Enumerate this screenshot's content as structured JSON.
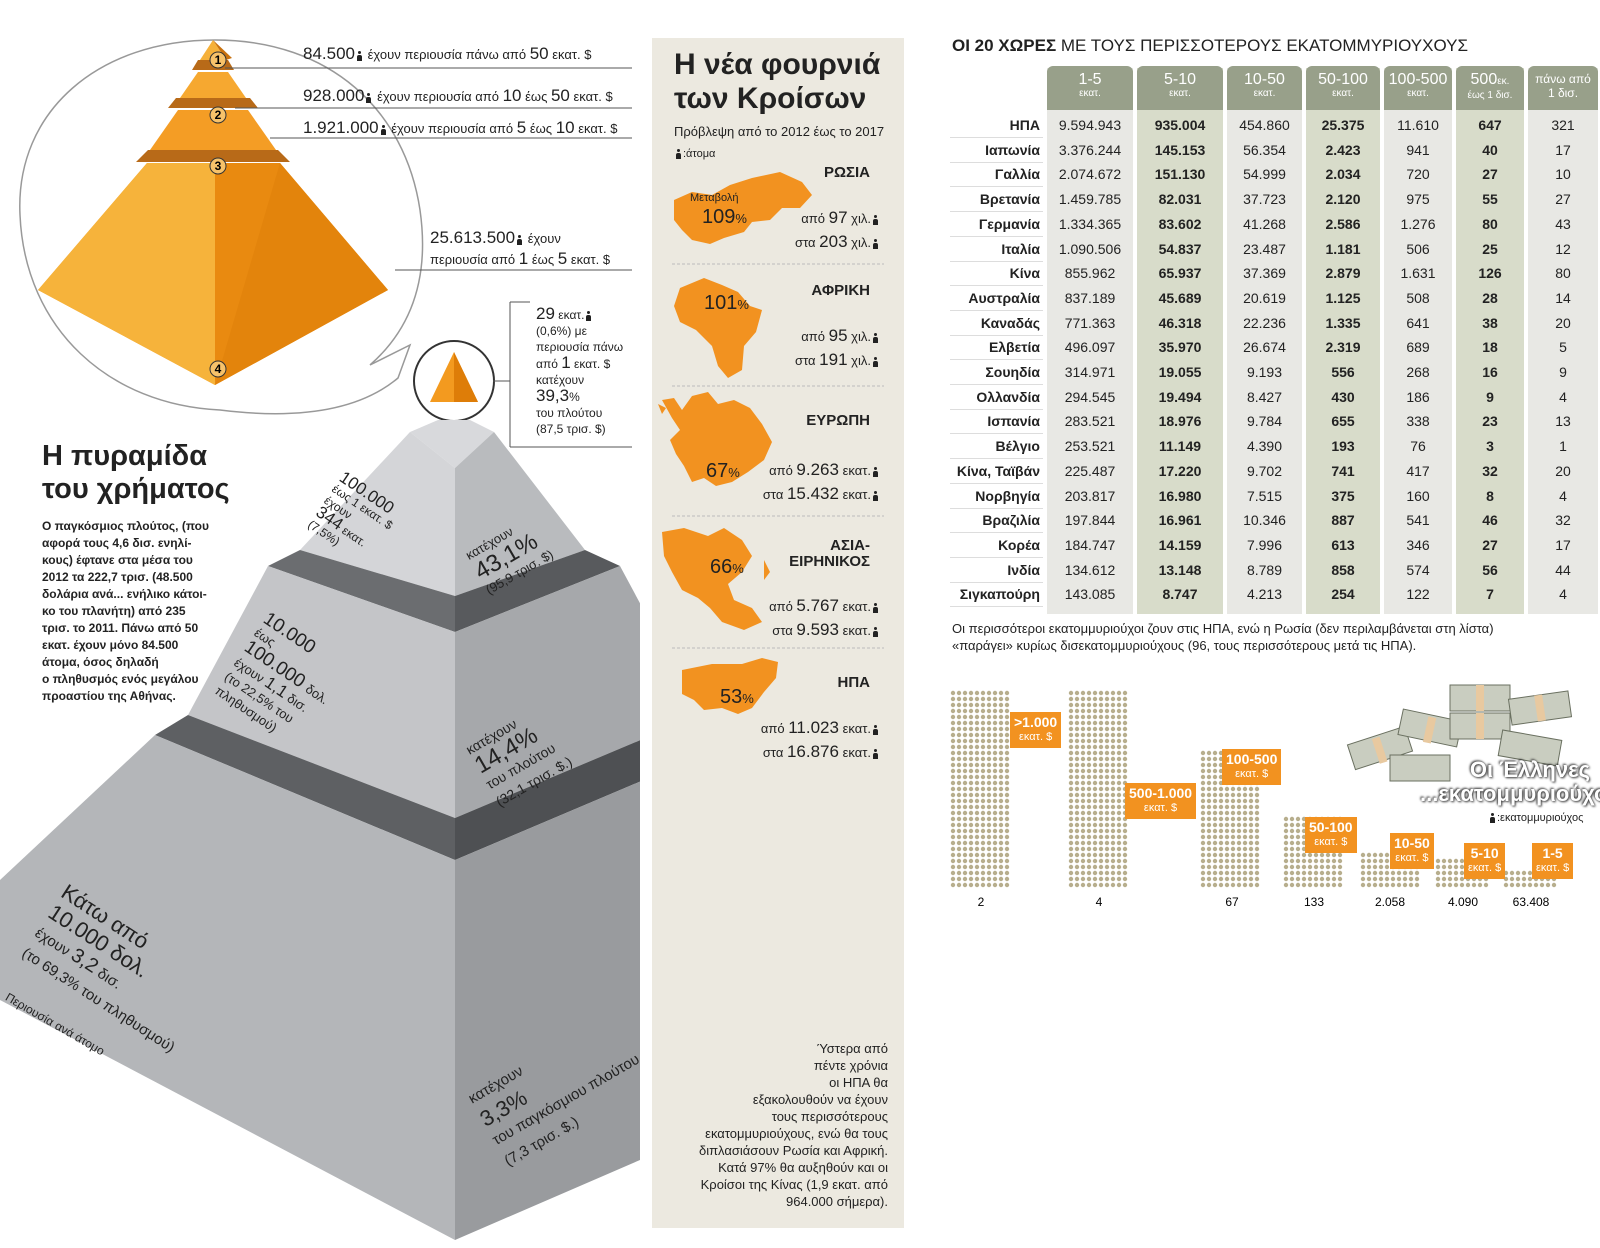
{
  "colors": {
    "orange": "#f29220",
    "gray_dark": "#8a8c90",
    "gray_light": "#c8c9cc",
    "panel": "#ece9e0",
    "header_green": "#98a08a"
  },
  "pyramid_top": {
    "tiers": [
      {
        "num": "1",
        "value": "84.500",
        "text": "έχουν περιουσία πάνω από",
        "n1": "50",
        "unit": "εκατ. $"
      },
      {
        "num": "2",
        "value": "928.000",
        "text": "έχουν περιουσία από",
        "n1": "10",
        "mid": "έως",
        "n2": "50",
        "unit": "εκατ. $"
      },
      {
        "num": "3",
        "value": "1.921.000",
        "text": "έχουν περιουσία από",
        "n1": "5",
        "mid": "έως",
        "n2": "10",
        "unit": "εκατ. $"
      },
      {
        "num": "4",
        "value": "25.613.500",
        "text1": "έχουν",
        "text2": "περιουσία από",
        "n1": "1",
        "mid": "έως",
        "n2": "5",
        "unit": "εκατ. $"
      }
    ]
  },
  "callout": {
    "value": "29",
    "unit": "εκατ.",
    "l2": "(0,6%) με",
    "l3": "περιουσία πάνω",
    "l4a": "από",
    "l4b": "1",
    "l4c": "εκατ. $",
    "l5": "κατέχουν",
    "l6": "39,3",
    "l6b": "%",
    "l7": "του πλούτου",
    "l8": "(87,5 τρισ. $)"
  },
  "main_title": {
    "l1": "Η πυραμίδα",
    "l2": "του χρήματος"
  },
  "main_text": [
    "Ο παγκόσμιος πλούτος, (που",
    "αφορά τους 4,6 δισ. ενηλί-",
    "κους) έφτανε στα μέσα του",
    "2012 τα 222,7 τρισ. (48.500",
    "δολάρια ανά... ενήλικο κάτοι-",
    "κο του πλανήτη) από 235",
    "τρισ. το 2011. Πάνω από 50",
    "εκατ. έχουν μόνο 84.500",
    "άτομα, όσος δηλαδή",
    "ο πληθυσμός ενός μεγάλου",
    "προαστίου της Αθήνας."
  ],
  "pyramid_layers": {
    "l1_left": [
      "100.000",
      "έως 1 εκατ. $",
      "έχουν",
      "344",
      "εκατ.",
      "(7,5%)"
    ],
    "l1_right": [
      "κατέχουν",
      "43,1%",
      "(95,9 τρισ. $)"
    ],
    "l2_left": [
      "10.000",
      "έως",
      "100.000",
      "δολ.",
      "έχουν",
      "1,1",
      "δισ.",
      "(το 22,5% του",
      "πληθυσμού)"
    ],
    "l2_right": [
      "κατέχουν",
      "14,4%",
      "του πλούτου",
      "(32,1 τρισ. $.)"
    ],
    "l3_left": [
      "Κάτω από",
      "10.000 δολ.",
      "έχουν",
      "3,2",
      "δισ.",
      "(το 69,3% του πληθυσμού)"
    ],
    "l3_right": [
      "κατέχουν",
      "3,3%",
      "του παγκόσμιου πλούτου",
      "(7,3 τρισ. $.)"
    ],
    "axis_label": "Περιουσία ανά άτομο"
  },
  "bottom_note": [
    "Ύστερα από",
    "πέντε χρόνια",
    "οι ΗΠΑ θα",
    "εξακολουθούν να έχουν",
    "τους περισσότερους",
    "εκατομμυριούχους, ενώ θα τους",
    "διπλασιάσουν Ρωσία και Αφρική.",
    "Κατά 97% θα αυξηθούν και οι",
    "Κροίσοι της Κίνας (1,9 εκατ. από",
    "964.000 σήμερα)."
  ],
  "middle": {
    "title1": "Η νέα φουρνιά",
    "title2": "των Κροίσων",
    "subtitle": "Πρόβλεψη από το 2012 έως το 2017",
    "legend": ":άτομα",
    "change_label": "Μεταβολή",
    "regions": [
      {
        "name": "ΡΩΣΙΑ",
        "pct": "109",
        "from": "97",
        "from_unit": "χιλ.",
        "to": "203",
        "to_unit": "χιλ."
      },
      {
        "name": "ΑΦΡΙΚΗ",
        "pct": "101",
        "from": "95",
        "from_unit": "χιλ.",
        "to": "191",
        "to_unit": "χιλ."
      },
      {
        "name": "ΕΥΡΩΠΗ",
        "pct": "67",
        "from": "9.263",
        "from_unit": "εκατ.",
        "to": "15.432",
        "to_unit": "εκατ."
      },
      {
        "name1": "ΑΣΙΑ-",
        "name2": "ΕΙΡΗΝΙΚΟΣ",
        "pct": "66",
        "from": "5.767",
        "from_unit": "εκατ.",
        "to": "9.593",
        "to_unit": "εκατ."
      },
      {
        "name": "ΗΠΑ",
        "pct": "53",
        "from": "11.023",
        "from_unit": "εκατ.",
        "to": "16.876",
        "to_unit": "εκατ."
      }
    ],
    "from_word": "από",
    "to_word": "στα",
    "pct_sign": "%"
  },
  "table": {
    "title_bold": "ΟΙ 20 ΧΩΡΕΣ",
    "title_rest": " ΜΕ ΤΟΥΣ ΠΕΡΙΣΣΟΤΕΡΟΥΣ ΕΚΑΤΟΜΜΥΡΙΟΥΧΟΥΣ",
    "headers": [
      {
        "big": "1-5",
        "sm": "εκατ."
      },
      {
        "big": "5-10",
        "sm": "εκατ."
      },
      {
        "big": "10-50",
        "sm": "εκατ."
      },
      {
        "big": "50-100",
        "sm": "εκατ."
      },
      {
        "big": "100-500",
        "sm": "εκατ."
      },
      {
        "big": "500",
        "big_sm": "εκ.",
        "sm": "έως 1 δισ."
      },
      {
        "big": "πάνω από",
        "sm": "1 δισ."
      }
    ],
    "rows": [
      {
        "country": "ΗΠΑ",
        "v": [
          "9.594.943",
          "935.004",
          "454.860",
          "25.375",
          "11.610",
          "647",
          "321"
        ]
      },
      {
        "country": "Ιαπωνία",
        "v": [
          "3.376.244",
          "145.153",
          "56.354",
          "2.423",
          "941",
          "40",
          "17"
        ]
      },
      {
        "country": "Γαλλία",
        "v": [
          "2.074.672",
          "151.130",
          "54.999",
          "2.034",
          "720",
          "27",
          "10"
        ]
      },
      {
        "country": "Βρετανία",
        "v": [
          "1.459.785",
          "82.031",
          "37.723",
          "2.120",
          "975",
          "55",
          "27"
        ]
      },
      {
        "country": "Γερμανία",
        "v": [
          "1.334.365",
          "83.602",
          "41.268",
          "2.586",
          "1.276",
          "80",
          "43"
        ]
      },
      {
        "country": "Ιταλία",
        "v": [
          "1.090.506",
          "54.837",
          "23.487",
          "1.181",
          "506",
          "25",
          "12"
        ]
      },
      {
        "country": "Κίνα",
        "v": [
          "855.962",
          "65.937",
          "37.369",
          "2.879",
          "1.631",
          "126",
          "80"
        ]
      },
      {
        "country": "Αυστραλία",
        "v": [
          "837.189",
          "45.689",
          "20.619",
          "1.125",
          "508",
          "28",
          "14"
        ]
      },
      {
        "country": "Καναδάς",
        "v": [
          "771.363",
          "46.318",
          "22.236",
          "1.335",
          "641",
          "38",
          "20"
        ]
      },
      {
        "country": "Ελβετία",
        "v": [
          "496.097",
          "35.970",
          "26.674",
          "2.319",
          "689",
          "18",
          "5"
        ]
      },
      {
        "country": "Σουηδία",
        "v": [
          "314.971",
          "19.055",
          "9.193",
          "556",
          "268",
          "16",
          "9"
        ]
      },
      {
        "country": "Ολλανδία",
        "v": [
          "294.545",
          "19.494",
          "8.427",
          "430",
          "186",
          "9",
          "4"
        ]
      },
      {
        "country": "Ισπανία",
        "v": [
          "283.521",
          "18.976",
          "9.784",
          "655",
          "338",
          "23",
          "13"
        ]
      },
      {
        "country": "Βέλγιο",
        "v": [
          "253.521",
          "11.149",
          "4.390",
          "193",
          "76",
          "3",
          "1"
        ]
      },
      {
        "country": "Κίνα, Ταϊβάν",
        "v": [
          "225.487",
          "17.220",
          "9.702",
          "741",
          "417",
          "32",
          "20"
        ]
      },
      {
        "country": "Νορβηγία",
        "v": [
          "203.817",
          "16.980",
          "7.515",
          "375",
          "160",
          "8",
          "4"
        ]
      },
      {
        "country": "Βραζιλία",
        "v": [
          "197.844",
          "16.961",
          "10.346",
          "887",
          "541",
          "46",
          "32"
        ]
      },
      {
        "country": "Κορέα",
        "v": [
          "184.747",
          "14.159",
          "7.996",
          "613",
          "346",
          "27",
          "17"
        ]
      },
      {
        "country": "Ινδία",
        "v": [
          "134.612",
          "13.148",
          "8.789",
          "858",
          "574",
          "56",
          "44"
        ]
      },
      {
        "country": "Σιγκαπούρη",
        "v": [
          "143.085",
          "8.747",
          "4.213",
          "254",
          "122",
          "7",
          "4"
        ]
      }
    ],
    "note": [
      "Οι περισσότεροι εκατομμυριούχοι ζουν στις ΗΠΑ, ενώ η Ρωσία (δεν περιλαμβάνεται στη λίστα)",
      "«παράγει» κυρίως δισεκατομμυριούχους (96, τους περισσότερους μετά τις ΗΠΑ)."
    ]
  },
  "greek_chart": {
    "title1": "Οι Έλληνες",
    "title2": "...εκατομμυριούχοι",
    "legend": ":εκατομμυριούχος",
    "groups": [
      {
        "label": ">1.000",
        "unit": "εκατ. $",
        "count": "2"
      },
      {
        "label": "500-1.000",
        "unit": "εκατ. $",
        "count": "4"
      },
      {
        "label": "100-500",
        "unit": "εκατ. $",
        "count": "67"
      },
      {
        "label": "50-100",
        "unit": "εκατ. $",
        "count": "133"
      },
      {
        "label": "10-50",
        "unit": "εκατ. $",
        "count": "2.058"
      },
      {
        "label": "5-10",
        "unit": "εκατ. $",
        "count": "4.090"
      },
      {
        "label": "1-5",
        "unit": "εκατ. $",
        "count": "63.408"
      }
    ]
  },
  "chart_data": [
    {
      "type": "table",
      "title": "ΟΙ 20 ΧΩΡΕΣ ΜΕ ΤΟΥΣ ΠΕΡΙΣΣΟΤΕΡΟΥΣ ΕΚΑΤΟΜΜΥΡΙΟΥΧΟΥΣ",
      "columns": [
        "1-5 εκατ.",
        "5-10 εκατ.",
        "10-50 εκατ.",
        "50-100 εκατ.",
        "100-500 εκατ.",
        "500 εκ. έως 1 δισ.",
        "πάνω από 1 δισ."
      ]
    },
    {
      "type": "bar",
      "title": "Η νέα φουρνιά των Κροίσων",
      "categories": [
        "ΡΩΣΙΑ",
        "ΑΦΡΙΚΗ",
        "ΕΥΡΩΠΗ",
        "ΑΣΙΑ-ΕΙΡΗΝΙΚΟΣ",
        "ΗΠΑ"
      ],
      "values": [
        109,
        101,
        67,
        66,
        53
      ]
    },
    {
      "type": "bar",
      "title": "Οι Έλληνες ...εκατομμυριούχοι",
      "categories": [
        ">1.000",
        "500-1.000",
        "100-500",
        "50-100",
        "10-50",
        "5-10",
        "1-5"
      ],
      "values": [
        2,
        4,
        67,
        133,
        2058,
        4090,
        63408
      ]
    }
  ]
}
